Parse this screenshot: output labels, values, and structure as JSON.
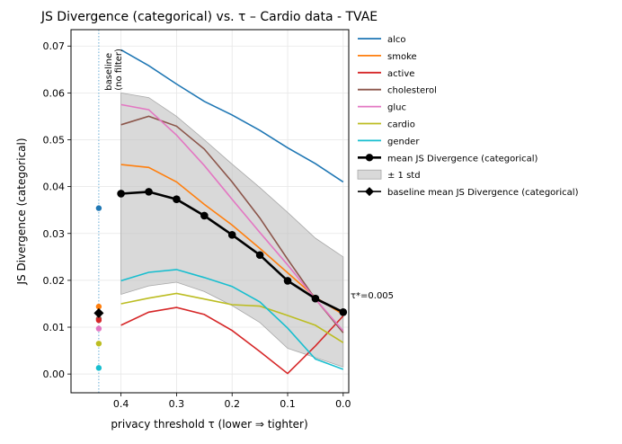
{
  "chart_data": {
    "type": "line",
    "title": "JS Divergence (categorical) vs. τ  – Cardio data - TVAE",
    "xlabel": "privacy threshold τ  (lower ⇒ tighter)",
    "ylabel": "JS Divergence (categorical)",
    "xlim": [
      0.49,
      -0.01
    ],
    "ylim": [
      -0.004,
      0.0735
    ],
    "x_ticks": [
      0.4,
      0.3,
      0.2,
      0.1,
      0.0
    ],
    "x_tick_labels": [
      "0.4",
      "0.3",
      "0.2",
      "0.1",
      "0.0"
    ],
    "y_ticks": [
      0.0,
      0.01,
      0.02,
      0.03,
      0.04,
      0.05,
      0.06,
      0.07
    ],
    "y_tick_labels": [
      "0.00",
      "0.01",
      "0.02",
      "0.03",
      "0.04",
      "0.05",
      "0.06",
      "0.07"
    ],
    "grid": true,
    "legend_position": "outside-right",
    "x": [
      0.4,
      0.35,
      0.3,
      0.25,
      0.2,
      0.15,
      0.1,
      0.05,
      0.0
    ],
    "series": [
      {
        "name": "alco",
        "color": "#1f77b4",
        "values": [
          0.0692,
          0.0658,
          0.0619,
          0.0582,
          0.0553,
          0.052,
          0.0483,
          0.0449,
          0.041
        ]
      },
      {
        "name": "smoke",
        "color": "#ff7f0e",
        "values": [
          0.0447,
          0.0441,
          0.041,
          0.0362,
          0.0318,
          0.0268,
          0.0216,
          0.0164,
          0.0127
        ]
      },
      {
        "name": "active",
        "color": "#d62728",
        "values": [
          0.0104,
          0.0132,
          0.0142,
          0.0127,
          0.0093,
          0.0048,
          0.0001,
          0.006,
          0.0124
        ]
      },
      {
        "name": "cholesterol",
        "color": "#8c564b",
        "values": [
          0.0532,
          0.055,
          0.0529,
          0.048,
          0.041,
          0.0333,
          0.0245,
          0.016,
          0.0088
        ]
      },
      {
        "name": "gluc",
        "color": "#e377c2",
        "values": [
          0.0575,
          0.0564,
          0.051,
          0.0445,
          0.0373,
          0.0302,
          0.0233,
          0.016,
          0.0092
        ]
      },
      {
        "name": "cardio",
        "color": "#bcbd22",
        "values": [
          0.015,
          0.0162,
          0.0172,
          0.016,
          0.0148,
          0.0145,
          0.0125,
          0.0104,
          0.0067
        ]
      },
      {
        "name": "gender",
        "color": "#17becf",
        "values": [
          0.0199,
          0.0217,
          0.0223,
          0.0206,
          0.0187,
          0.0154,
          0.0098,
          0.0032,
          0.001
        ]
      }
    ],
    "mean": {
      "name": "mean JS Divergence (categorical)",
      "color": "#000000",
      "values": [
        0.0385,
        0.0389,
        0.0373,
        0.0338,
        0.0297,
        0.0254,
        0.0199,
        0.0161,
        0.0132
      ]
    },
    "std_band": {
      "name": "± 1 std",
      "color": "#c0c0c0",
      "upper": [
        0.06,
        0.059,
        0.055,
        0.05,
        0.0448,
        0.0398,
        0.0345,
        0.029,
        0.025
      ],
      "lower": [
        0.017,
        0.0188,
        0.0196,
        0.0176,
        0.0146,
        0.011,
        0.0055,
        0.0035,
        0.0015
      ]
    },
    "baseline": {
      "name": "baseline mean JS Divergence (categorical)",
      "x": 0.44,
      "mean": 0.013,
      "annotation": "baseline\n(no filter)",
      "points": [
        {
          "series": "alco",
          "value": 0.0354
        },
        {
          "series": "smoke",
          "value": 0.0144
        },
        {
          "series": "cholesterol",
          "value": 0.0118
        },
        {
          "series": "active",
          "value": 0.0115
        },
        {
          "series": "gluc",
          "value": 0.0097
        },
        {
          "series": "cardio",
          "value": 0.0065
        },
        {
          "series": "gender",
          "value": 0.0013
        }
      ]
    },
    "tau_star": {
      "label": "τ*=0.005",
      "x": 0.005,
      "value": 0.0132
    }
  }
}
